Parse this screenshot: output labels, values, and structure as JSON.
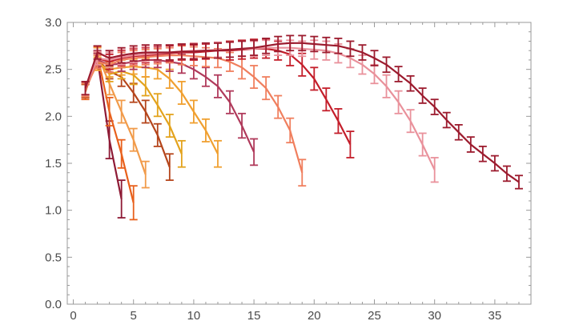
{
  "chart_data": {
    "type": "line",
    "title": "",
    "xlabel": "",
    "ylabel": "",
    "xlim": [
      -0.5,
      38
    ],
    "ylim": [
      0,
      3.0
    ],
    "x_ticks": [
      0,
      5,
      10,
      15,
      20,
      25,
      30,
      35
    ],
    "y_ticks": [
      0.0,
      0.5,
      1.0,
      1.5,
      2.0,
      2.5,
      3.0
    ],
    "x_tick_labels": [
      "0",
      "5",
      "10",
      "15",
      "20",
      "25",
      "30",
      "35"
    ],
    "y_tick_labels": [
      "0.0",
      "0.5",
      "1.0",
      "1.5",
      "2.0",
      "2.5",
      "3.0"
    ],
    "grid": false,
    "error_bars": true,
    "series": [
      {
        "color": "#8e1a35",
        "x": [
          1,
          2,
          3,
          4
        ],
        "y": [
          2.28,
          2.62,
          1.75,
          1.12
        ],
        "err": [
          0.08,
          0.08,
          0.2,
          0.2
        ]
      },
      {
        "color": "#e8601c",
        "x": [
          1,
          2,
          3,
          4,
          5
        ],
        "y": [
          2.26,
          2.66,
          2.05,
          1.6,
          1.08
        ],
        "err": [
          0.08,
          0.08,
          0.15,
          0.15,
          0.18
        ]
      },
      {
        "color": "#f19b4a",
        "x": [
          1,
          2,
          3,
          4,
          5,
          6
        ],
        "y": [
          2.27,
          2.66,
          2.35,
          2.05,
          1.75,
          1.38
        ],
        "err": [
          0.07,
          0.07,
          0.12,
          0.12,
          0.12,
          0.14
        ]
      },
      {
        "color": "#b5451b",
        "x": [
          1,
          2,
          3,
          4,
          5,
          6,
          7,
          8
        ],
        "y": [
          2.27,
          2.6,
          2.48,
          2.42,
          2.25,
          2.05,
          1.8,
          1.46
        ],
        "err": [
          0.07,
          0.07,
          0.08,
          0.1,
          0.1,
          0.12,
          0.12,
          0.14
        ]
      },
      {
        "color": "#e3a31d",
        "x": [
          1,
          2,
          3,
          4,
          5,
          6,
          7,
          8,
          9
        ],
        "y": [
          2.28,
          2.6,
          2.45,
          2.48,
          2.44,
          2.32,
          2.12,
          1.9,
          1.6
        ],
        "err": [
          0.07,
          0.07,
          0.08,
          0.08,
          0.1,
          0.1,
          0.12,
          0.12,
          0.14
        ]
      },
      {
        "color": "#f0a030",
        "x": [
          1,
          2,
          3,
          4,
          5,
          6,
          7,
          8,
          9,
          10,
          11,
          12
        ],
        "y": [
          2.3,
          2.56,
          2.5,
          2.52,
          2.53,
          2.52,
          2.5,
          2.4,
          2.25,
          2.05,
          1.85,
          1.6
        ],
        "err": [
          0.07,
          0.07,
          0.08,
          0.08,
          0.08,
          0.1,
          0.1,
          0.1,
          0.12,
          0.12,
          0.12,
          0.14
        ]
      },
      {
        "color": "#b03a5b",
        "x": [
          1,
          2,
          3,
          4,
          5,
          6,
          7,
          8,
          9,
          10,
          11,
          12,
          13,
          14,
          15
        ],
        "y": [
          2.3,
          2.6,
          2.55,
          2.56,
          2.58,
          2.6,
          2.6,
          2.58,
          2.56,
          2.5,
          2.42,
          2.32,
          2.15,
          1.9,
          1.62
        ],
        "err": [
          0.07,
          0.07,
          0.08,
          0.08,
          0.08,
          0.08,
          0.08,
          0.1,
          0.1,
          0.1,
          0.1,
          0.12,
          0.12,
          0.13,
          0.14
        ]
      },
      {
        "color": "#f07f5e",
        "x": [
          1,
          2,
          3,
          4,
          5,
          6,
          7,
          8,
          9,
          10,
          11,
          12,
          13,
          14,
          15,
          16,
          17,
          18,
          19
        ],
        "y": [
          2.28,
          2.58,
          2.55,
          2.6,
          2.62,
          2.63,
          2.64,
          2.65,
          2.65,
          2.64,
          2.63,
          2.62,
          2.58,
          2.52,
          2.42,
          2.3,
          2.1,
          1.85,
          1.4
        ],
        "err": [
          0.07,
          0.07,
          0.08,
          0.08,
          0.08,
          0.08,
          0.08,
          0.08,
          0.1,
          0.1,
          0.1,
          0.1,
          0.1,
          0.12,
          0.12,
          0.12,
          0.12,
          0.13,
          0.14
        ]
      },
      {
        "color": "#c41e2a",
        "x": [
          1,
          2,
          3,
          4,
          5,
          6,
          7,
          8,
          9,
          10,
          11,
          12,
          13,
          14,
          15,
          16,
          17,
          18,
          19,
          20,
          21,
          22,
          23
        ],
        "y": [
          2.3,
          2.62,
          2.58,
          2.62,
          2.64,
          2.65,
          2.66,
          2.67,
          2.68,
          2.68,
          2.69,
          2.7,
          2.7,
          2.71,
          2.72,
          2.72,
          2.7,
          2.66,
          2.55,
          2.4,
          2.18,
          1.95,
          1.7
        ],
        "err": [
          0.07,
          0.07,
          0.08,
          0.08,
          0.08,
          0.08,
          0.08,
          0.08,
          0.08,
          0.08,
          0.08,
          0.08,
          0.1,
          0.1,
          0.1,
          0.1,
          0.1,
          0.12,
          0.12,
          0.12,
          0.12,
          0.13,
          0.14
        ]
      },
      {
        "color": "#e9919b",
        "x": [
          1,
          2,
          3,
          4,
          5,
          6,
          7,
          8,
          9,
          10,
          11,
          12,
          13,
          14,
          15,
          16,
          17,
          18,
          19,
          20,
          21,
          22,
          23,
          24,
          25,
          26,
          27,
          28,
          29,
          30
        ],
        "y": [
          2.3,
          2.62,
          2.6,
          2.63,
          2.65,
          2.66,
          2.67,
          2.68,
          2.69,
          2.7,
          2.7,
          2.71,
          2.71,
          2.72,
          2.72,
          2.73,
          2.73,
          2.73,
          2.72,
          2.71,
          2.7,
          2.67,
          2.62,
          2.55,
          2.45,
          2.32,
          2.15,
          1.95,
          1.7,
          1.43
        ],
        "err": [
          0.07,
          0.07,
          0.08,
          0.08,
          0.08,
          0.08,
          0.08,
          0.08,
          0.08,
          0.08,
          0.08,
          0.08,
          0.08,
          0.08,
          0.08,
          0.08,
          0.08,
          0.08,
          0.08,
          0.1,
          0.1,
          0.1,
          0.1,
          0.1,
          0.1,
          0.12,
          0.12,
          0.12,
          0.12,
          0.13
        ]
      },
      {
        "color": "#9c1b2e",
        "x": [
          1,
          2,
          3,
          4,
          5,
          6,
          7,
          8,
          9,
          10,
          11,
          12,
          13,
          14,
          15,
          16,
          17,
          18,
          19,
          20,
          21,
          22,
          23,
          24,
          25,
          26,
          27,
          28,
          29,
          30,
          31,
          32,
          33,
          34,
          35,
          36,
          37
        ],
        "y": [
          2.3,
          2.68,
          2.62,
          2.65,
          2.67,
          2.68,
          2.68,
          2.68,
          2.69,
          2.69,
          2.7,
          2.7,
          2.71,
          2.72,
          2.73,
          2.75,
          2.77,
          2.78,
          2.78,
          2.77,
          2.76,
          2.75,
          2.72,
          2.68,
          2.62,
          2.55,
          2.45,
          2.35,
          2.22,
          2.1,
          1.96,
          1.83,
          1.7,
          1.6,
          1.5,
          1.39,
          1.3
        ],
        "err": [
          0.07,
          0.07,
          0.08,
          0.08,
          0.08,
          0.08,
          0.08,
          0.08,
          0.08,
          0.08,
          0.08,
          0.08,
          0.08,
          0.08,
          0.08,
          0.08,
          0.08,
          0.08,
          0.08,
          0.08,
          0.08,
          0.08,
          0.08,
          0.08,
          0.08,
          0.08,
          0.08,
          0.08,
          0.08,
          0.08,
          0.08,
          0.08,
          0.08,
          0.08,
          0.08,
          0.08,
          0.07
        ]
      }
    ]
  }
}
